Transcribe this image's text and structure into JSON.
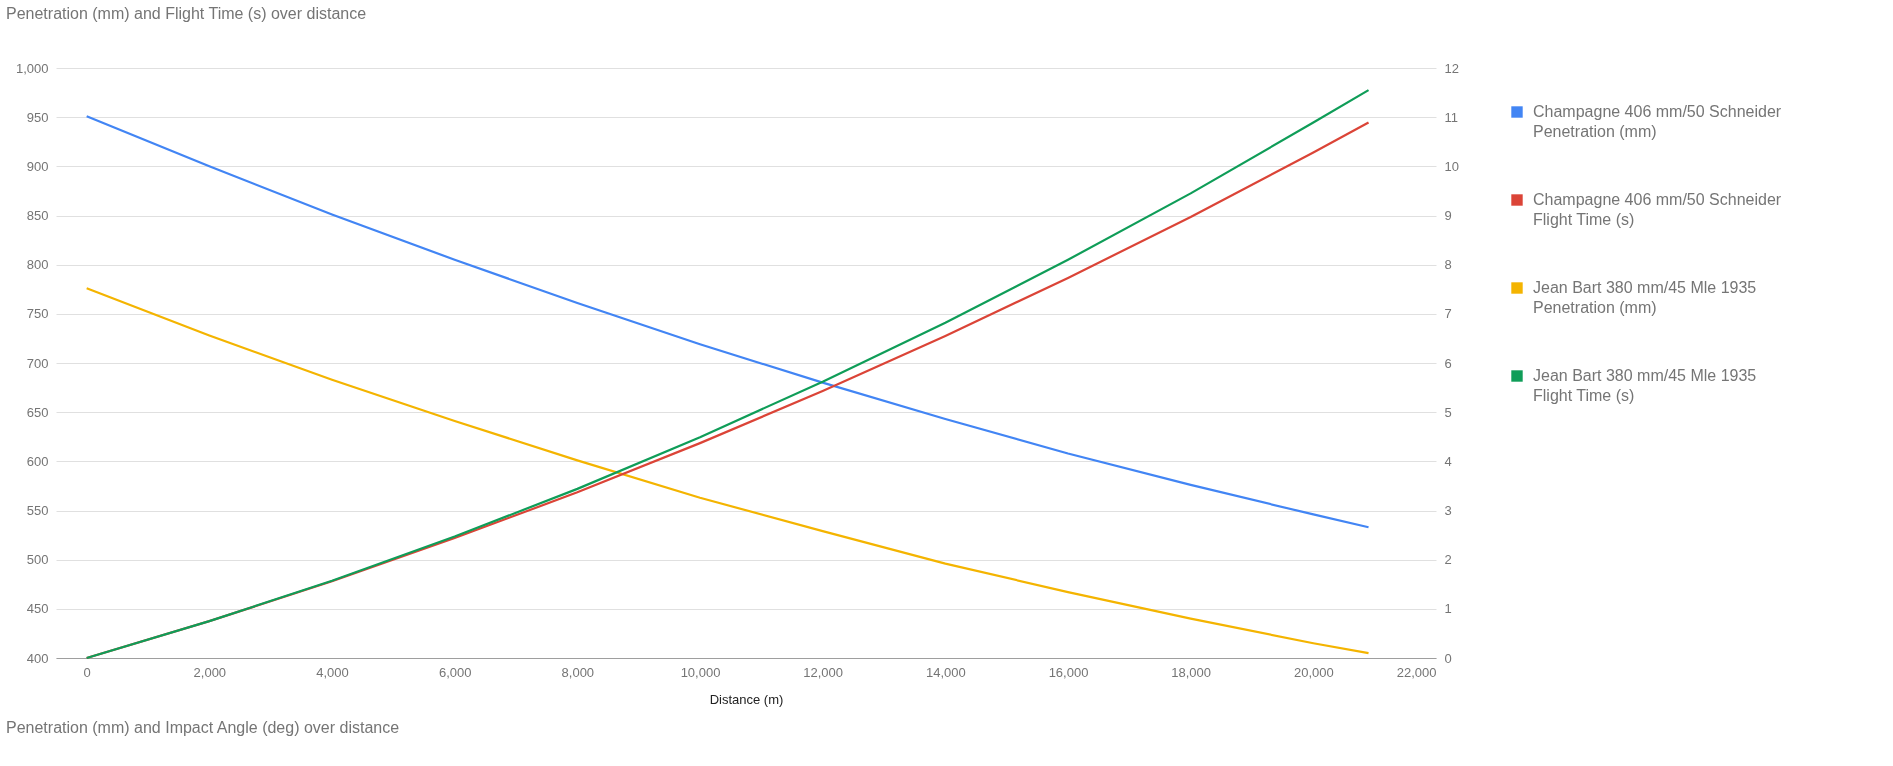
{
  "chart_data": {
    "type": "line",
    "title": "Penetration (mm) and Flight Time (s) over distance",
    "xlabel": "Distance (m)",
    "x": [
      0,
      2000,
      4000,
      6000,
      8000,
      10000,
      12000,
      14000,
      16000,
      18000,
      20000,
      20900
    ],
    "series": [
      {
        "name": "Champagne 406 mm/50 Schneider\nPenetration (mm)",
        "color": "#4285f4",
        "axis": "y",
        "values": [
          951,
          900,
          851,
          805,
          761,
          719,
          680,
          643,
          608,
          576,
          546,
          533
        ]
      },
      {
        "name": "Champagne 406 mm/50 Schneider\nFlight Time (s)",
        "color": "#db4437",
        "axis": "y2",
        "values": [
          0,
          0.75,
          1.56,
          2.44,
          3.37,
          4.37,
          5.43,
          6.55,
          7.73,
          8.97,
          10.28,
          10.89
        ]
      },
      {
        "name": "Jean Bart 380 mm/45 Mle 1935\nPenetration (mm)",
        "color": "#f4b400",
        "axis": "y",
        "values": [
          776,
          728,
          683,
          641,
          601,
          563,
          529,
          496,
          467,
          440,
          415,
          405
        ]
      },
      {
        "name": "Jean Bart 380 mm/45 Mle 1935\nFlight Time (s)",
        "color": "#0f9d58",
        "axis": "y2",
        "values": [
          0,
          0.75,
          1.57,
          2.47,
          3.44,
          4.49,
          5.62,
          6.82,
          8.1,
          9.45,
          10.89,
          11.55
        ]
      }
    ],
    "xlim": [
      -500,
      22000
    ],
    "xticks": [
      0,
      {
        "value": 2000,
        "label": "2,000"
      },
      {
        "value": 4000,
        "label": "4,000"
      },
      {
        "value": 6000,
        "label": "6,000"
      },
      {
        "value": 8000,
        "label": "8,000"
      },
      {
        "value": 10000,
        "label": "10,000"
      },
      {
        "value": 12000,
        "label": "12,000"
      },
      {
        "value": 14000,
        "label": "14,000"
      },
      {
        "value": 16000,
        "label": "16,000"
      },
      {
        "value": 18000,
        "label": "18,000"
      },
      {
        "value": 20000,
        "label": "20,000"
      },
      {
        "value": 22000,
        "label": "22,000"
      }
    ],
    "ylim": [
      400,
      1000
    ],
    "yticks": [
      400,
      450,
      500,
      550,
      600,
      650,
      700,
      750,
      800,
      850,
      900,
      950,
      {
        "value": 1000,
        "label": "1,000"
      }
    ],
    "y2lim": [
      0,
      12
    ],
    "y2ticks": [
      0,
      1,
      2,
      3,
      4,
      5,
      6,
      7,
      8,
      9,
      10,
      11,
      12
    ],
    "grid": "y",
    "legend": "right",
    "marker": "none",
    "line_style": "solid",
    "annotations": [
      "Penetration (mm) and Impact Angle (deg) over distance"
    ]
  }
}
